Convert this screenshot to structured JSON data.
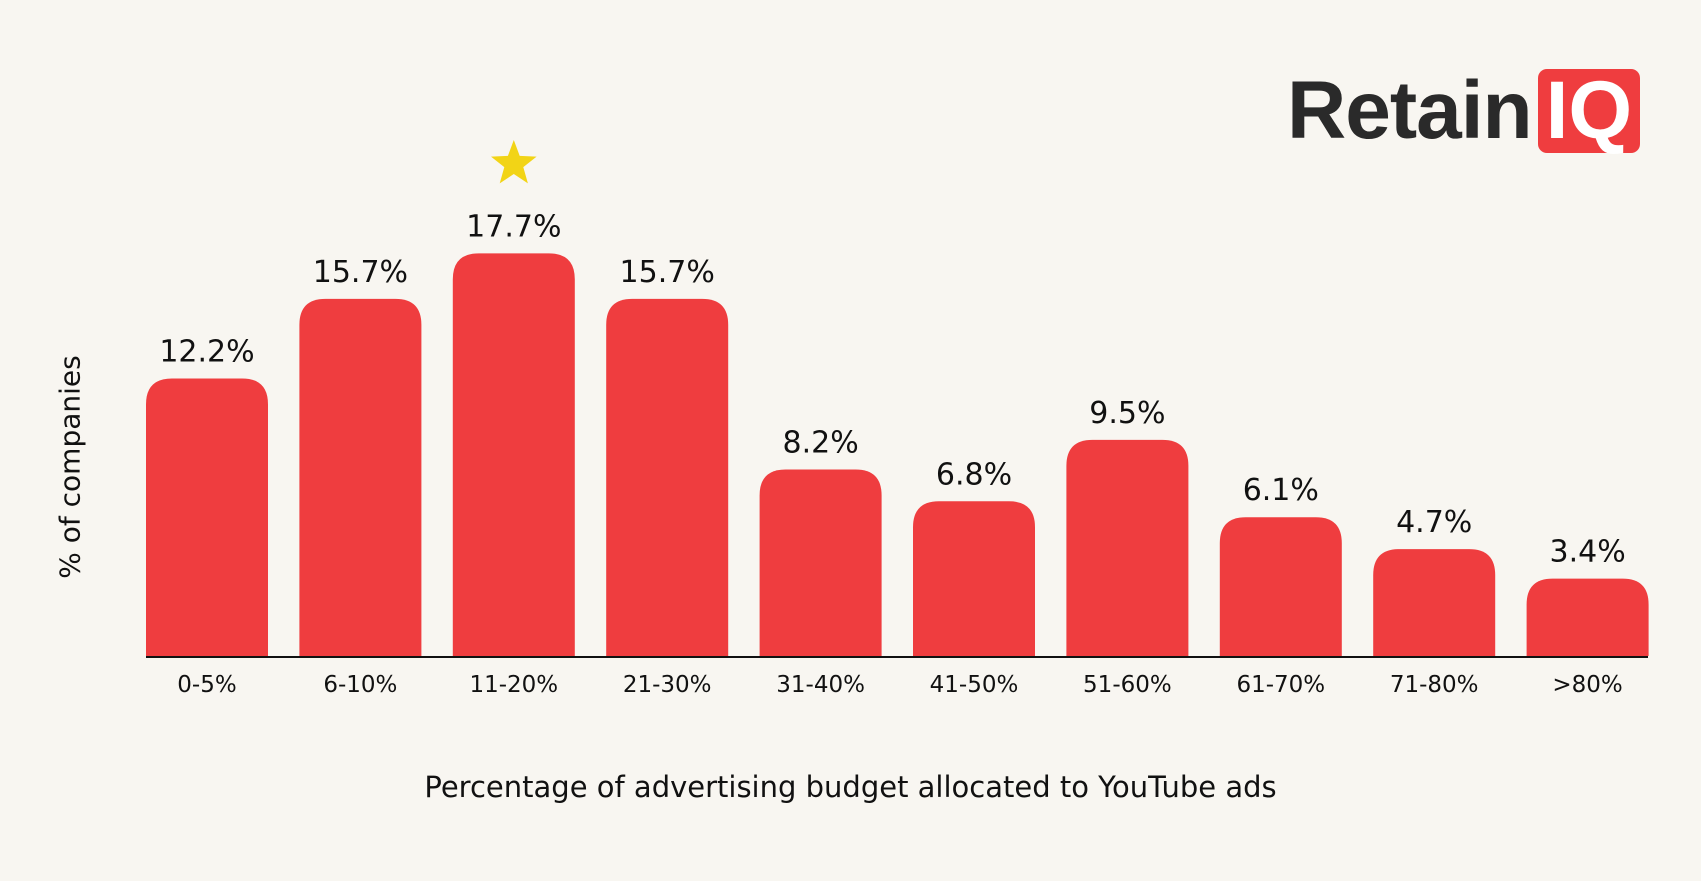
{
  "brand": {
    "name_part1": "Retain",
    "name_part2": "IQ",
    "color": "#ef3d3f"
  },
  "chart_data": {
    "type": "bar",
    "categories": [
      "0-5%",
      "6-10%",
      "11-20%",
      "21-30%",
      "31-40%",
      "41-50%",
      "51-60%",
      "61-70%",
      "71-80%",
      ">80%"
    ],
    "values": [
      12.2,
      15.7,
      17.7,
      15.7,
      8.2,
      6.8,
      9.5,
      6.1,
      4.7,
      3.4
    ],
    "data_labels": [
      "12.2%",
      "15.7%",
      "17.7%",
      "15.7%",
      "8.2%",
      "6.8%",
      "9.5%",
      "6.1%",
      "4.7%",
      "3.4%"
    ],
    "title": "",
    "xlabel": "Percentage of advertising budget allocated to YouTube ads",
    "ylabel": "% of companies",
    "ylim": [
      0,
      20
    ],
    "grid": false,
    "bar_color": "#ef3d3f",
    "highlight": {
      "category": "11-20%",
      "icon": "star-icon",
      "color": "#f2d416"
    }
  }
}
